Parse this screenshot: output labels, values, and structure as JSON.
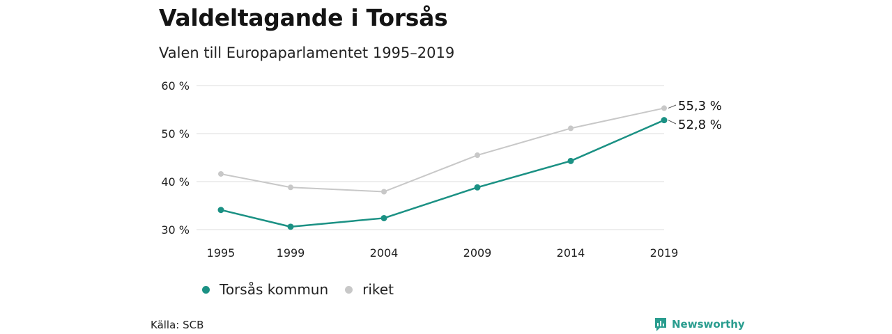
{
  "title": "Valdeltagande i Torsås",
  "subtitle": "Valen till Europaparlamentet 1995–2019",
  "source": "Källa: SCB",
  "brand": "Newsworthy",
  "colors": {
    "torsas": "#1b9184",
    "riket": "#c8c8c8",
    "grid": "#dddddd",
    "brand": "#2a9d8f"
  },
  "chart_data": {
    "type": "line",
    "title": "Valdeltagande i Torsås",
    "subtitle": "Valen till Europaparlamentet 1995–2019",
    "x": [
      1995,
      1999,
      2004,
      2009,
      2014,
      2019
    ],
    "x_tick_labels": [
      "1995",
      "1999",
      "2004",
      "2009",
      "2014",
      "2019"
    ],
    "y_ticks": [
      30,
      40,
      50,
      60
    ],
    "y_tick_labels": [
      "30 %",
      "40 %",
      "50 %",
      "60 %"
    ],
    "ylim": [
      30,
      60
    ],
    "grid": true,
    "legend": "bottom-left",
    "series": [
      {
        "name": "Torsås kommun",
        "values": [
          34.1,
          30.6,
          32.4,
          38.8,
          44.3,
          52.8
        ],
        "color": "#1b9184",
        "end_label": "52,8 %"
      },
      {
        "name": "riket",
        "values": [
          41.6,
          38.8,
          37.9,
          45.5,
          51.1,
          55.3
        ],
        "color": "#c8c8c8",
        "end_label": "55,3 %"
      }
    ]
  }
}
